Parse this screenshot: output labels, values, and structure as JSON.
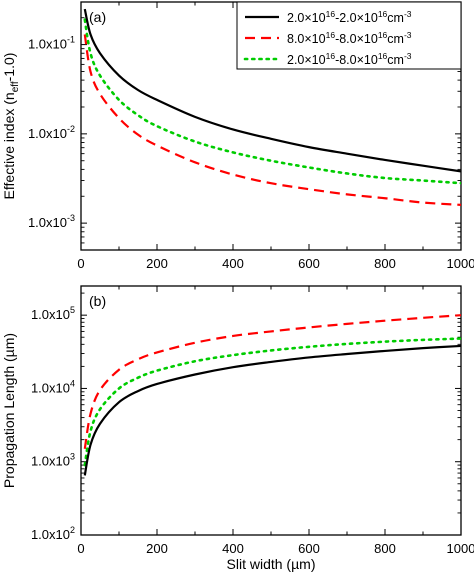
{
  "chart_data": [
    {
      "type": "line",
      "panel_label": "(a)",
      "xlabel": "",
      "ylabel": "Effective index (n",
      "ylabel_sub": "eff",
      "ylabel_tail": "-1.0)",
      "xlim": [
        0,
        1000
      ],
      "ylim": [
        0.0005,
        0.3
      ],
      "yscale": "log",
      "grid": false,
      "x_ticks": [
        0,
        200,
        400,
        600,
        800,
        1000
      ],
      "x_tick_labels": [
        "0",
        "200",
        "400",
        "600",
        "800",
        "1000"
      ],
      "y_ticks": [
        0.001,
        0.01,
        0.1
      ],
      "y_tick_labels": [
        {
          "base": "1.0x10",
          "exp": "-3"
        },
        {
          "base": "1.0x10",
          "exp": "-2"
        },
        {
          "base": "1.0x10",
          "exp": "-1"
        }
      ],
      "legend_position": "top-right",
      "x": [
        10,
        25,
        50,
        100,
        150,
        200,
        300,
        400,
        500,
        600,
        700,
        800,
        900,
        1000
      ],
      "series": [
        {
          "key": "s1",
          "name_parts": [
            "2.0×10",
            "16",
            "-2.0×10",
            "16",
            "cm",
            "-3"
          ],
          "color": "#000000",
          "dash": "solid",
          "values": [
            0.25,
            0.13,
            0.08,
            0.045,
            0.031,
            0.024,
            0.0155,
            0.0112,
            0.0088,
            0.0071,
            0.006,
            0.0051,
            0.0044,
            0.0038
          ]
        },
        {
          "key": "s2",
          "name_parts": [
            "8.0×10",
            "16",
            "-8.0×10",
            "16",
            "cm",
            "-3"
          ],
          "color": "#ff0000",
          "dash": "dashed",
          "values": [
            0.13,
            0.05,
            0.028,
            0.015,
            0.0098,
            0.0074,
            0.0048,
            0.0035,
            0.0028,
            0.0024,
            0.0021,
            0.0019,
            0.0017,
            0.0016
          ]
        },
        {
          "key": "s3",
          "name_parts": [
            "2.0×10",
            "16",
            "-8.0×10",
            "16",
            "cm",
            "-3"
          ],
          "color": "#00cc00",
          "dash": "dotted",
          "values": [
            0.19,
            0.08,
            0.045,
            0.024,
            0.0162,
            0.0122,
            0.0082,
            0.0062,
            0.005,
            0.0042,
            0.0036,
            0.0032,
            0.003,
            0.0028
          ]
        }
      ]
    },
    {
      "type": "line",
      "panel_label": "(b)",
      "xlabel": "Slit  width (µm)",
      "ylabel": "Propagation Length (µm)",
      "xlim": [
        0,
        1000
      ],
      "ylim": [
        100,
        250000
      ],
      "yscale": "log",
      "grid": false,
      "x_ticks": [
        0,
        200,
        400,
        600,
        800,
        1000
      ],
      "x_tick_labels": [
        "0",
        "200",
        "400",
        "600",
        "800",
        "1000"
      ],
      "y_ticks": [
        100,
        1000,
        10000,
        100000
      ],
      "y_tick_labels": [
        {
          "base": "1.0x10",
          "exp": "2"
        },
        {
          "base": "1.0x10",
          "exp": "3"
        },
        {
          "base": "1.0x10",
          "exp": "4"
        },
        {
          "base": "1.0x10",
          "exp": "5"
        }
      ],
      "x": [
        10,
        25,
        50,
        100,
        150,
        200,
        300,
        400,
        500,
        600,
        700,
        800,
        900,
        1000
      ],
      "series": [
        {
          "key": "s1",
          "color": "#000000",
          "dash": "solid",
          "values": [
            650,
            1700,
            3300,
            6500,
            9200,
            11500,
            15500,
            19500,
            23000,
            26500,
            29500,
            32500,
            35500,
            38000
          ]
        },
        {
          "key": "s2",
          "color": "#ff0000",
          "dash": "dashed",
          "values": [
            1500,
            4500,
            9500,
            18000,
            25000,
            31000,
            42000,
            52000,
            60000,
            68000,
            76000,
            84000,
            92000,
            100000
          ]
        },
        {
          "key": "s3",
          "color": "#00cc00",
          "dash": "dotted",
          "values": [
            900,
            2600,
            5200,
            10000,
            14000,
            17500,
            23500,
            28500,
            33000,
            37000,
            40500,
            43500,
            46000,
            48000
          ]
        }
      ]
    }
  ]
}
